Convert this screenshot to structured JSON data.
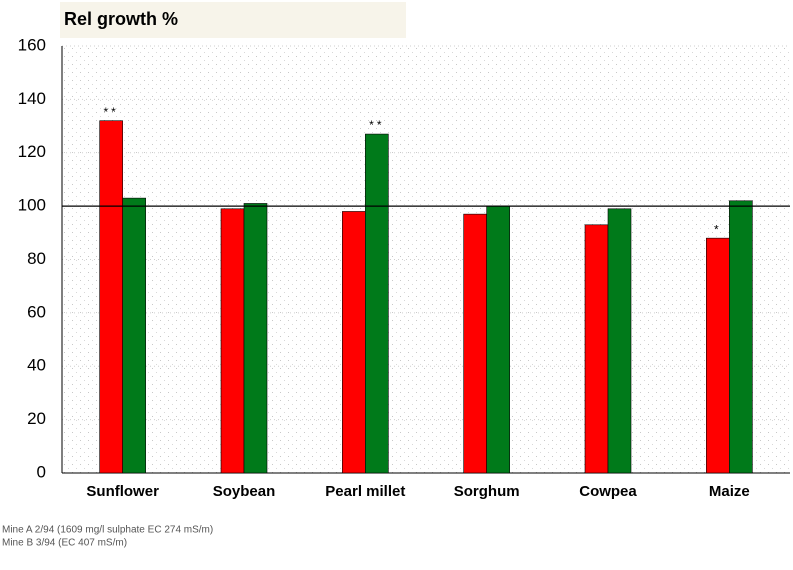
{
  "chart_data": {
    "type": "bar",
    "title": "Rel growth %",
    "categories": [
      "Sunflower",
      "Soybean",
      "Pearl millet",
      "Sorghum",
      "Cowpea",
      "Maize"
    ],
    "series": [
      {
        "name": "Mine A 2/94 (1609 mg/l sulphate EC 274 mS/m)",
        "color": "#ff0000",
        "values": [
          132,
          99,
          98,
          97,
          93,
          88
        ]
      },
      {
        "name": "Mine B 3/94 (EC 407 mS/m)",
        "color": "#007a1a",
        "values": [
          103,
          101,
          127,
          100,
          99,
          102
        ]
      }
    ],
    "ylim": [
      0,
      160
    ],
    "yticks": [
      0,
      20,
      40,
      60,
      80,
      100,
      120,
      140,
      160
    ],
    "grid": true,
    "reference_line": 100,
    "annotations": [
      {
        "text": "**",
        "series": 0,
        "category": 0
      },
      {
        "text": "**",
        "series": 1,
        "category": 2
      },
      {
        "text": "*",
        "series": 0,
        "category": 5
      }
    ]
  }
}
